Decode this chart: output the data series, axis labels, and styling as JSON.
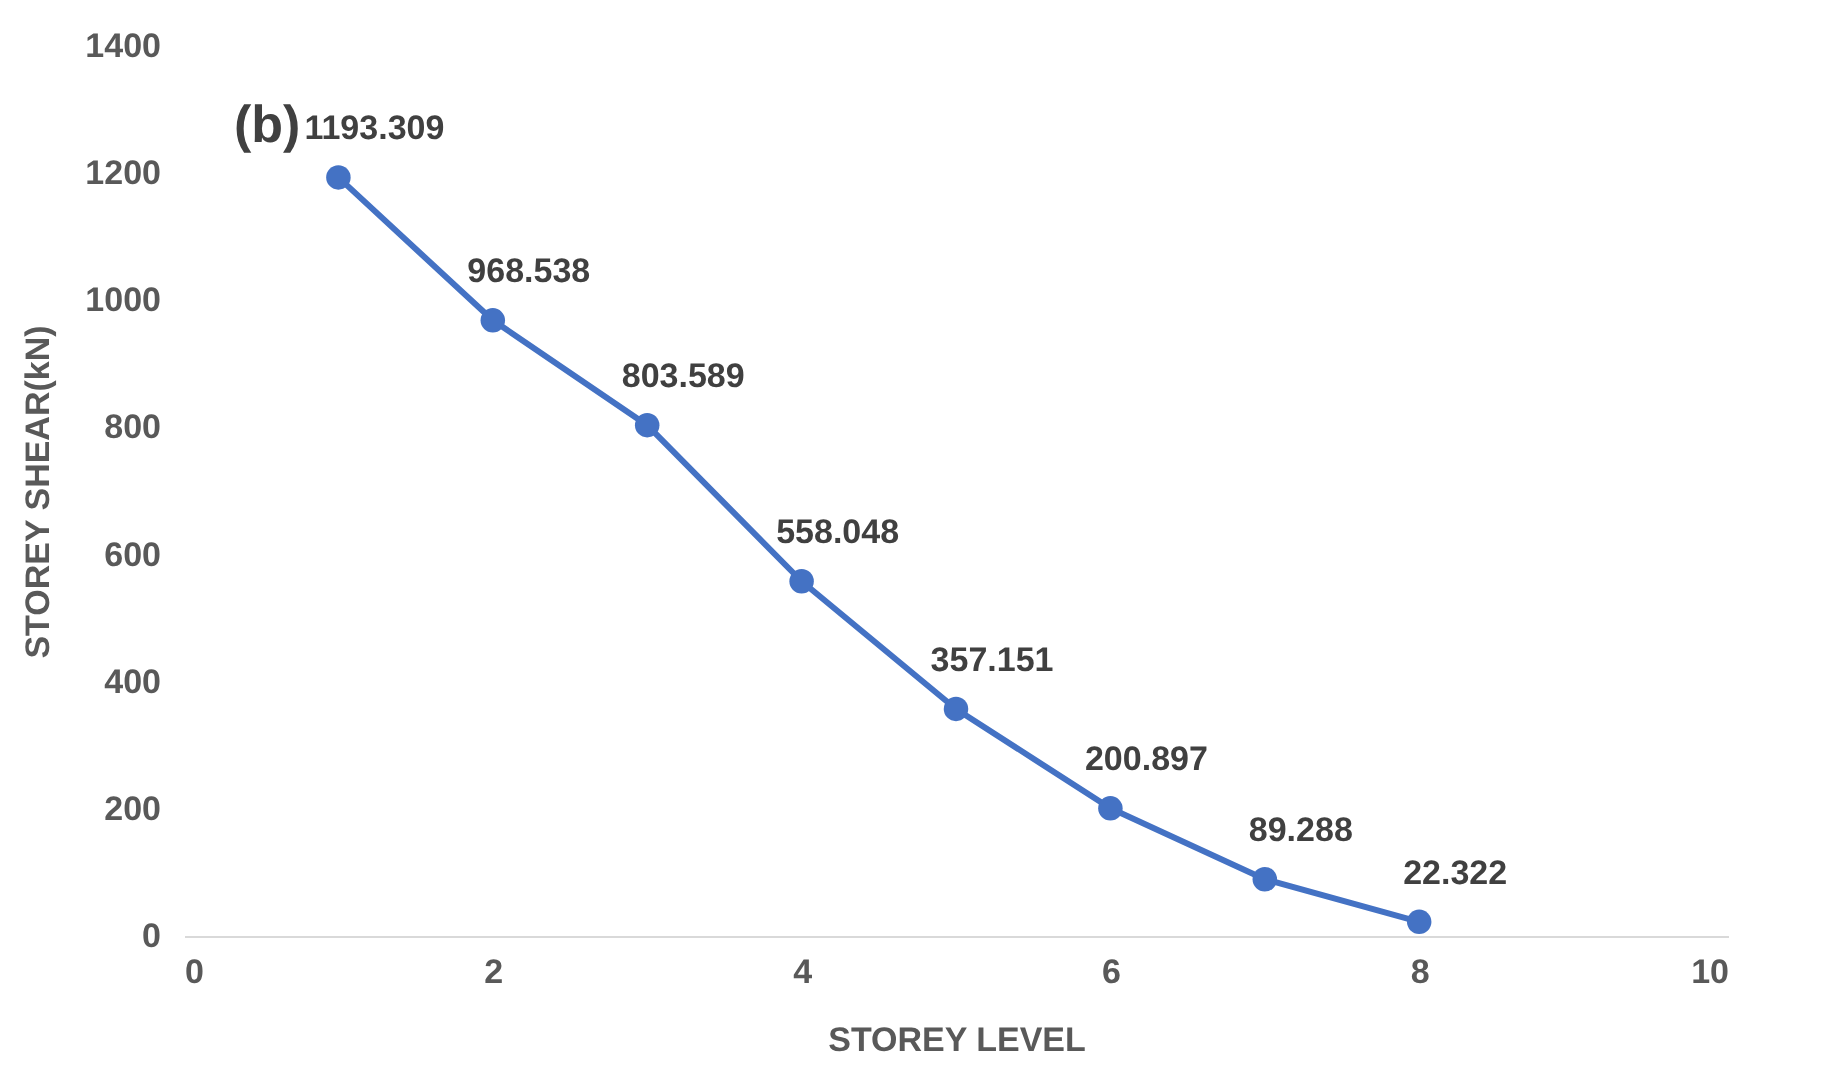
{
  "chart_data": {
    "type": "line",
    "xlabel": "STOREY LEVEL",
    "ylabel": "STOREY SHEAR(kN)",
    "annotations": [
      "(b)"
    ],
    "x": [
      1,
      2,
      3,
      4,
      5,
      6,
      7,
      8
    ],
    "series": [
      {
        "color": "#4472c4",
        "values": [
          1193.309,
          968.538,
          803.589,
          558.048,
          357.151,
          200.897,
          89.288,
          22.322
        ]
      }
    ],
    "xlim": [
      0,
      10
    ],
    "xticks": [
      0,
      2,
      4,
      6,
      8,
      10
    ],
    "ylim": [
      0,
      1400
    ],
    "yticks": [
      0,
      200,
      400,
      600,
      800,
      1000,
      1200,
      1400
    ],
    "data_labels": true,
    "marker": "circle",
    "line_style": "solid",
    "grid": false,
    "legend": false
  }
}
